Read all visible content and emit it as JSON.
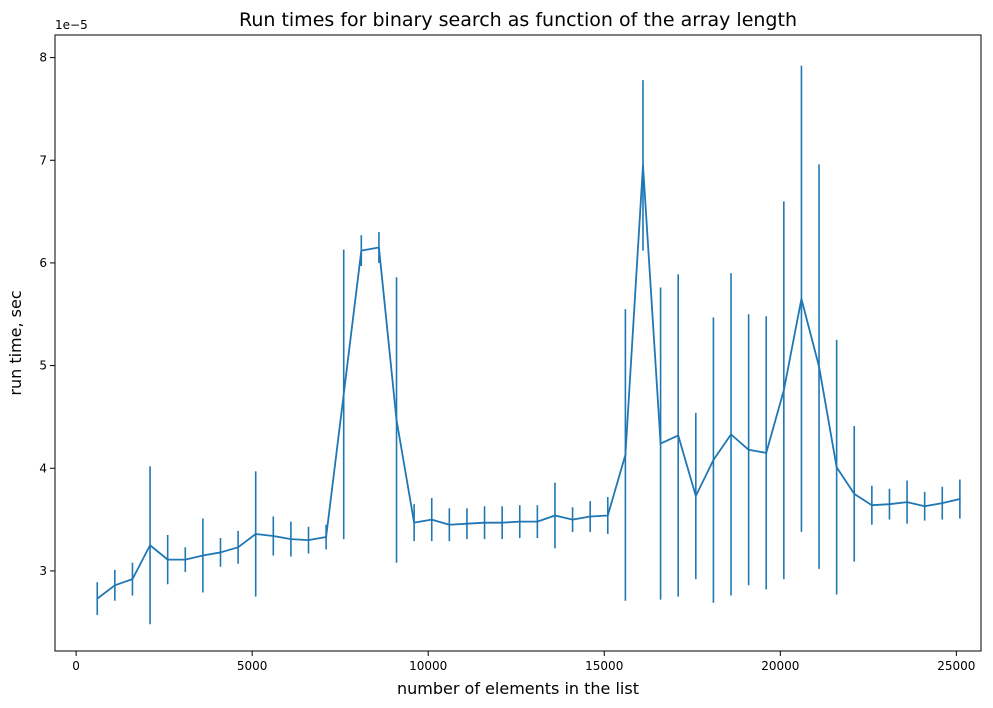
{
  "chart_data": {
    "type": "line",
    "title": "Run times for binary search as function of the array length",
    "xlabel": "number of elements in the list",
    "ylabel": "run time, sec",
    "y_offset_label": "1e−5",
    "y_scale_factor": 1e-05,
    "xlim": [
      -600,
      25700
    ],
    "ylim": [
      2.22,
      8.22
    ],
    "xticks": [
      0,
      5000,
      10000,
      15000,
      20000,
      25000
    ],
    "yticks": [
      3,
      4,
      5,
      6,
      7,
      8
    ],
    "grid": false,
    "line_color": "#1f77b4",
    "series": [
      {
        "x": [
          600,
          1100,
          1600,
          2100,
          2600,
          3100,
          3600,
          4100,
          4600,
          5100,
          5600,
          6100,
          6600,
          7100,
          7600,
          8100,
          8600,
          9100,
          9600,
          10100,
          10600,
          11100,
          11600,
          12100,
          12600,
          13100,
          13600,
          14100,
          14600,
          15100,
          15600,
          16100,
          16600,
          17100,
          17600,
          18100,
          18600,
          19100,
          19600,
          20100,
          20600,
          21100,
          21600,
          22100,
          22600,
          23100,
          23600,
          24100,
          24600,
          25100
        ],
        "y": [
          2.73,
          2.86,
          2.92,
          3.25,
          3.11,
          3.11,
          3.15,
          3.18,
          3.23,
          3.36,
          3.34,
          3.31,
          3.3,
          3.33,
          4.72,
          6.12,
          6.15,
          4.47,
          3.47,
          3.5,
          3.45,
          3.46,
          3.47,
          3.47,
          3.48,
          3.48,
          3.54,
          3.5,
          3.53,
          3.54,
          4.13,
          6.95,
          4.24,
          4.32,
          3.73,
          4.08,
          4.33,
          4.18,
          4.15,
          4.76,
          5.65,
          4.99,
          4.01,
          3.75,
          3.64,
          3.65,
          3.67,
          3.63,
          3.66,
          3.7
        ],
        "err": [
          0.16,
          0.15,
          0.16,
          0.77,
          0.24,
          0.12,
          0.36,
          0.14,
          0.16,
          0.61,
          0.19,
          0.17,
          0.13,
          0.12,
          1.41,
          0.15,
          0.15,
          1.39,
          0.18,
          0.21,
          0.16,
          0.15,
          0.16,
          0.16,
          0.16,
          0.16,
          0.32,
          0.12,
          0.15,
          0.18,
          1.42,
          0.83,
          1.52,
          1.57,
          0.81,
          1.39,
          1.57,
          1.32,
          1.33,
          1.84,
          2.27,
          1.97,
          1.24,
          0.66,
          0.19,
          0.15,
          0.21,
          0.14,
          0.16,
          0.19
        ]
      }
    ]
  }
}
